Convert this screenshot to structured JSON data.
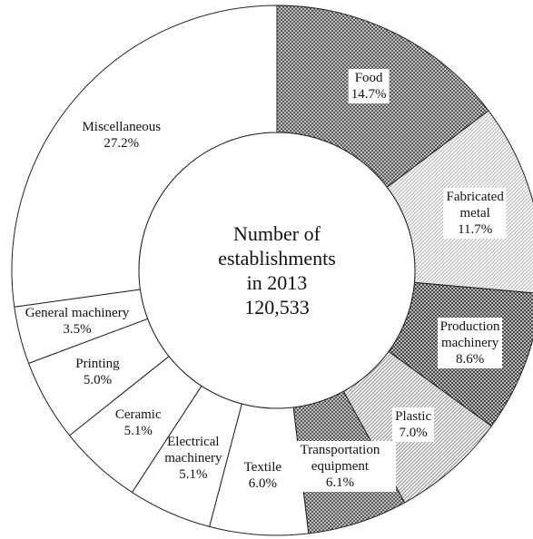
{
  "chart_data": {
    "type": "donut",
    "center_text": [
      "Number of",
      "establishments",
      "in 2013",
      "120,533"
    ],
    "categories": [
      "Food",
      "Fabricated metal",
      "Production machinery",
      "Plastic",
      "Transportation equipment",
      "Textile",
      "Electrical machinery",
      "Ceramic",
      "Printing",
      "General machinery",
      "Miscellaneous"
    ],
    "values": [
      14.7,
      11.7,
      8.6,
      7.0,
      6.1,
      6.0,
      5.1,
      5.1,
      5.0,
      3.5,
      27.2
    ],
    "value_labels": [
      "14.7%",
      "11.7%",
      "8.6%",
      "7.0%",
      "6.1%",
      "6.0%",
      "5.1%",
      "5.1%",
      "5.0%",
      "3.5%",
      "27.2%"
    ],
    "colors": [
      "#555555",
      "#bbbbbb",
      "#444444",
      "#999999",
      "#555555",
      "#ffffff",
      "#ffffff",
      "#ffffff",
      "#ffffff",
      "#ffffff",
      "#ffffff"
    ]
  }
}
